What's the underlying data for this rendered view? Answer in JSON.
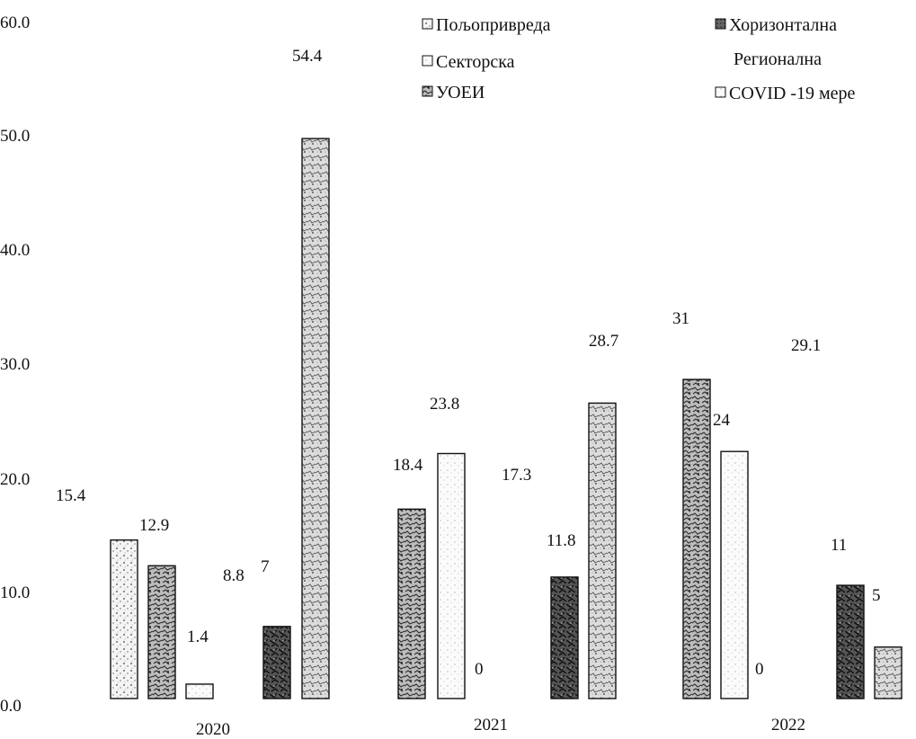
{
  "chart_data": {
    "type": "bar",
    "categories": [
      "2020",
      "2021",
      "2022"
    ],
    "series": [
      {
        "name": "Пољопривреда",
        "values": [
          15.4,
          17.3,
          29.1
        ],
        "pattern": "dots"
      },
      {
        "name": "Секторска",
        "values": [
          12.9,
          18.4,
          31.0
        ],
        "pattern": "stone"
      },
      {
        "name": "УОЕИ",
        "values": [
          1.4,
          23.8,
          24.0
        ],
        "pattern": "light"
      },
      {
        "name": "Хоризонтална Регионална",
        "values": [
          8.8,
          0.0,
          0.0
        ],
        "pattern": "light"
      },
      {
        "name": "COVID -19 мере",
        "values": [
          7.0,
          11.8,
          11.0
        ],
        "pattern": "dark"
      },
      {
        "name": "",
        "values": [
          54.4,
          28.7,
          5.0
        ],
        "pattern": "speckle"
      }
    ],
    "visible_bars": [
      [
        true,
        true,
        true,
        false,
        true,
        true
      ],
      [
        false,
        true,
        true,
        false,
        true,
        true
      ],
      [
        false,
        true,
        true,
        false,
        true,
        true
      ]
    ],
    "yticks": [
      "0.0",
      "10.0",
      "20.0",
      "30.0",
      "40.0",
      "50.0",
      "60.0"
    ],
    "ylim": [
      0,
      60
    ],
    "legend": {
      "placement": "top-right",
      "items": [
        "Пољопривреда",
        "Хоризонтална",
        "Секторска",
        "Регионална",
        "УОЕИ",
        "COVID -19 мере"
      ]
    },
    "title": "",
    "xlabel": "",
    "ylabel": ""
  }
}
